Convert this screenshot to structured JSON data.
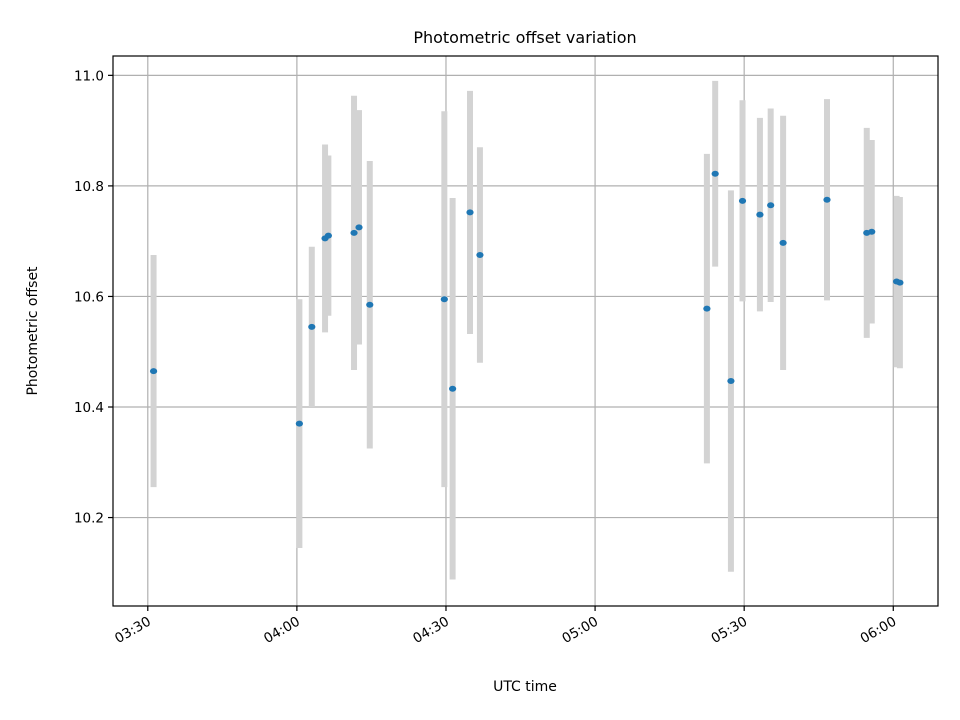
{
  "chart_data": {
    "type": "scatter",
    "title": "Photometric offset variation",
    "xlabel": "UTC time",
    "ylabel": "Photometric offset",
    "x_unit": "UTC time (HH:MM)",
    "xlim": [
      "03:23",
      "06:09"
    ],
    "ylim": [
      10.04,
      11.035
    ],
    "xticks": [
      "03:30",
      "04:00",
      "04:30",
      "05:00",
      "05:30",
      "06:00"
    ],
    "yticks": [
      "10.2",
      "10.4",
      "10.6",
      "10.8",
      "11.0"
    ],
    "grid": true,
    "colors": {
      "point": "#1f77b4",
      "errorbar": "#d3d3d3",
      "grid": "#b0b0b0"
    },
    "points": [
      {
        "x": "03:31:10",
        "y": 10.465,
        "err": 0.21
      },
      {
        "x": "04:00:30",
        "y": 10.37,
        "err": 0.225
      },
      {
        "x": "04:03:00",
        "y": 10.545,
        "err": 0.145
      },
      {
        "x": "04:05:40",
        "y": 10.705,
        "err": 0.17
      },
      {
        "x": "04:06:20",
        "y": 10.71,
        "err": 0.145
      },
      {
        "x": "04:11:30",
        "y": 10.715,
        "err": 0.248
      },
      {
        "x": "04:12:30",
        "y": 10.725,
        "err": 0.212
      },
      {
        "x": "04:14:40",
        "y": 10.585,
        "err": 0.26
      },
      {
        "x": "04:29:40",
        "y": 10.595,
        "err": 0.34
      },
      {
        "x": "04:31:20",
        "y": 10.433,
        "err": 0.345
      },
      {
        "x": "04:34:50",
        "y": 10.752,
        "err": 0.22
      },
      {
        "x": "04:36:50",
        "y": 10.675,
        "err": 0.195
      },
      {
        "x": "05:22:30",
        "y": 10.578,
        "err": 0.28
      },
      {
        "x": "05:24:10",
        "y": 10.822,
        "err": 0.168
      },
      {
        "x": "05:27:20",
        "y": 10.447,
        "err": 0.345
      },
      {
        "x": "05:29:40",
        "y": 10.773,
        "err": 0.182
      },
      {
        "x": "05:33:10",
        "y": 10.748,
        "err": 0.175
      },
      {
        "x": "05:35:20",
        "y": 10.765,
        "err": 0.175
      },
      {
        "x": "05:37:50",
        "y": 10.697,
        "err": 0.23
      },
      {
        "x": "05:46:40",
        "y": 10.775,
        "err": 0.182
      },
      {
        "x": "05:54:40",
        "y": 10.715,
        "err": 0.19
      },
      {
        "x": "05:55:40",
        "y": 10.717,
        "err": 0.166
      },
      {
        "x": "06:00:40",
        "y": 10.627,
        "err": 0.155
      },
      {
        "x": "06:01:20",
        "y": 10.625,
        "err": 0.155
      }
    ]
  }
}
